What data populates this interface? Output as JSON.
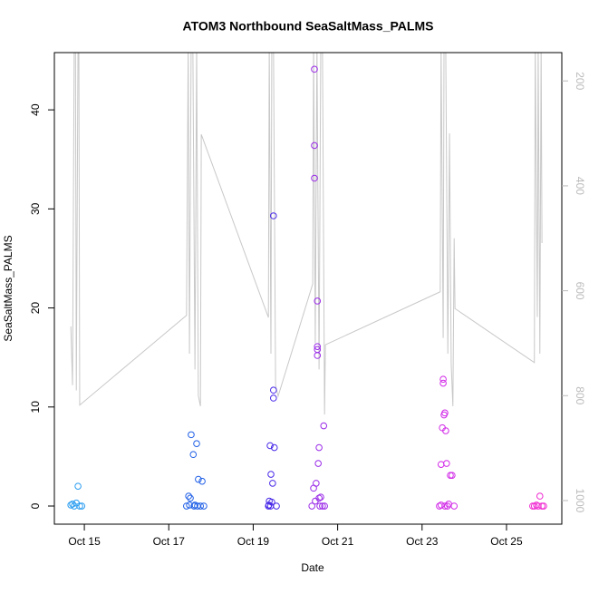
{
  "chart_data": {
    "type": "scatter",
    "title": "ATOM3 Northbound SeaSaltMass_PALMS",
    "x_label": "Date",
    "y_label": "SeaSaltMass_PALMS",
    "xlim": [
      14.29,
      26.31
    ],
    "xticks": [
      {
        "value": 15,
        "label": "Oct 15"
      },
      {
        "value": 17,
        "label": "Oct 17"
      },
      {
        "value": 19,
        "label": "Oct 19"
      },
      {
        "value": 21,
        "label": "Oct 21"
      },
      {
        "value": 23,
        "label": "Oct 23"
      },
      {
        "value": 25,
        "label": "Oct 25"
      }
    ],
    "ylim": [
      -1.83,
      45.78
    ],
    "yticks": [
      0,
      10,
      20,
      30,
      40
    ],
    "y2lim": [
      1045,
      146
    ],
    "y2ticks": [
      200,
      400,
      600,
      800,
      1000
    ],
    "series": [
      {
        "type": "line",
        "axis": "y2",
        "color": "#c8c8c8",
        "x": [
          14.68,
          14.72,
          14.76,
          14.79,
          14.81,
          14.85,
          14.87,
          14.89,
          17.42,
          17.46,
          17.49,
          17.53,
          17.57,
          17.62,
          17.66,
          17.7,
          17.75,
          17.77,
          19.36,
          19.38,
          19.42,
          19.44,
          19.48,
          19.53,
          19.59,
          20.41,
          20.43,
          20.47,
          20.51,
          20.56,
          20.6,
          20.64,
          20.69,
          20.71,
          23.43,
          23.45,
          23.5,
          23.52,
          23.56,
          23.61,
          23.65,
          23.69,
          23.73,
          23.76,
          23.78,
          25.66,
          25.68,
          25.73,
          25.75,
          25.79,
          25.82,
          25.84
        ],
        "values": [
          668,
          780,
          130,
          130,
          790,
          130,
          130,
          818,
          647,
          130,
          720,
          130,
          130,
          750,
          130,
          800,
          820,
          302,
          651,
          130,
          720,
          130,
          130,
          780,
          801,
          587,
          130,
          700,
          130,
          750,
          130,
          130,
          836,
          703,
          602,
          130,
          690,
          130,
          130,
          720,
          300,
          740,
          820,
          500,
          634,
          737,
          130,
          650,
          130,
          720,
          130,
          509
        ]
      },
      {
        "type": "scatter",
        "color": "#2a9df0",
        "x": [
          14.68,
          14.72,
          14.76,
          14.81,
          14.85,
          14.89,
          14.94
        ],
        "values": [
          0.1,
          0.2,
          0,
          0.3,
          2.0,
          0,
          0
        ]
      },
      {
        "type": "scatter",
        "color": "#1f5fe6",
        "x": [
          17.42,
          17.47,
          17.51,
          17.53,
          17.58,
          17.62,
          17.66,
          17.7,
          17.75,
          17.79,
          17.83,
          17.49,
          17.6,
          17.68
        ],
        "values": [
          0,
          1.0,
          0.8,
          7.2,
          5.2,
          0.1,
          6.3,
          2.7,
          0,
          2.5,
          0,
          0.1,
          0,
          0
        ]
      },
      {
        "type": "scatter",
        "color": "#4a2ae8",
        "x": [
          19.36,
          19.38,
          19.4,
          19.42,
          19.44,
          19.46,
          19.48,
          19.48,
          19.48,
          19.5,
          19.55,
          19.37,
          19.41
        ],
        "values": [
          0,
          0.5,
          6.1,
          3.2,
          0.4,
          2.3,
          29.3,
          11.7,
          10.9,
          5.9,
          0,
          0.1,
          0
        ]
      },
      {
        "type": "scatter",
        "color": "#9a2ae8",
        "x": [
          20.39,
          20.43,
          20.45,
          20.45,
          20.45,
          20.49,
          20.52,
          20.52,
          20.52,
          20.52,
          20.54,
          20.56,
          20.56,
          20.6,
          20.67,
          20.69,
          20.47,
          20.58,
          20.64
        ],
        "values": [
          0,
          1.8,
          44.1,
          36.4,
          33.1,
          2.3,
          20.7,
          16.1,
          15.8,
          15.2,
          4.3,
          5.9,
          0.8,
          0.9,
          8.1,
          0,
          0.5,
          0,
          0
        ]
      },
      {
        "type": "scatter",
        "color": "#d22ae8",
        "x": [
          23.41,
          23.45,
          23.48,
          23.5,
          23.5,
          23.52,
          23.54,
          23.56,
          23.58,
          23.63,
          23.67,
          23.71,
          23.76,
          23.45,
          23.6,
          23.54
        ],
        "values": [
          0,
          4.2,
          7.9,
          12.8,
          12.4,
          9.2,
          9.4,
          7.6,
          4.3,
          0.2,
          3.1,
          3.1,
          0,
          0.1,
          0,
          0
        ]
      },
      {
        "type": "scatter",
        "color": "#f02ad2",
        "x": [
          25.62,
          25.66,
          25.71,
          25.75,
          25.79,
          25.84,
          25.88
        ],
        "values": [
          0,
          0,
          0.1,
          0,
          1.0,
          0,
          0
        ]
      }
    ]
  }
}
